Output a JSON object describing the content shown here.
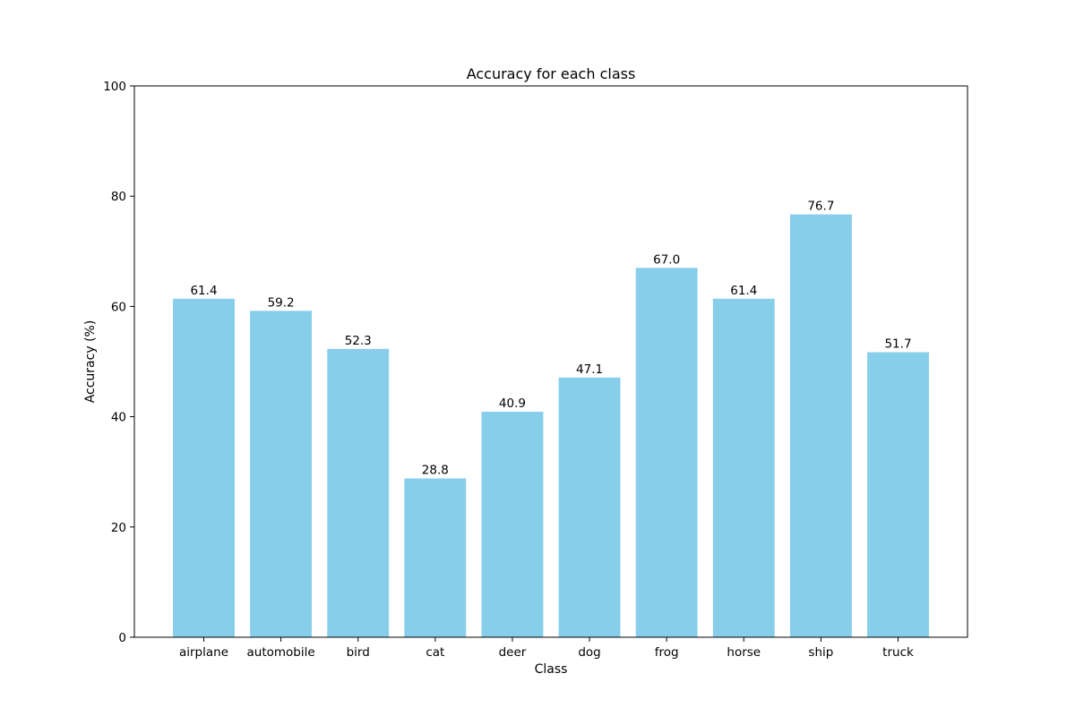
{
  "chart_data": {
    "type": "bar",
    "title": "Accuracy for each class",
    "xlabel": "Class",
    "ylabel": "Accuracy (%)",
    "categories": [
      "airplane",
      "automobile",
      "bird",
      "cat",
      "deer",
      "dog",
      "frog",
      "horse",
      "ship",
      "truck"
    ],
    "values": [
      61.4,
      59.2,
      52.3,
      28.8,
      40.9,
      47.1,
      67.0,
      61.4,
      76.7,
      51.7
    ],
    "value_labels": [
      "61.4",
      "59.2",
      "52.3",
      "28.8",
      "40.9",
      "47.1",
      "67.0",
      "61.4",
      "76.7",
      "51.7"
    ],
    "ylim": [
      0,
      100
    ],
    "yticks": [
      0,
      20,
      40,
      60,
      80,
      100
    ],
    "bar_color": "#87ceeb",
    "grid": false,
    "legend": "none"
  }
}
